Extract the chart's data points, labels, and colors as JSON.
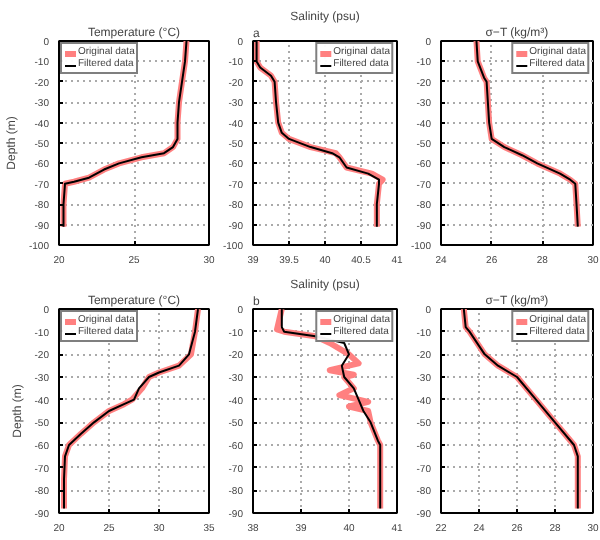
{
  "chart_data": [
    {
      "type": "line",
      "title": "Temperature (°C)",
      "ylabel": "Depth (m)",
      "xlim": [
        20,
        30
      ],
      "xticks": [
        20,
        25,
        30
      ],
      "ylim": [
        -100,
        0
      ],
      "yticks": [
        -100,
        -90,
        -80,
        -70,
        -60,
        -50,
        -40,
        -30,
        -20,
        -10,
        0
      ],
      "grid": true,
      "legend": "top left",
      "series": [
        {
          "name": "Original data",
          "color": "#ff8080",
          "x": [
            28.5,
            28.4,
            28.2,
            28.0,
            27.9,
            27.9,
            27.6,
            27.0,
            25.5,
            24.0,
            23.0,
            22.0,
            21.0,
            20.4,
            20.3,
            20.3
          ],
          "values": [
            0,
            -10,
            -20,
            -30,
            -40,
            -48,
            -52,
            -55,
            -57,
            -60,
            -63,
            -67,
            -69,
            -70,
            -80,
            -91
          ]
        },
        {
          "name": "Filtered data",
          "color": "#000000",
          "x": [
            28.5,
            28.4,
            28.2,
            28.0,
            27.9,
            27.9,
            27.6,
            27.0,
            25.5,
            24.0,
            23.0,
            22.0,
            21.0,
            20.4,
            20.3,
            20.3
          ],
          "values": [
            0,
            -10,
            -20,
            -30,
            -40,
            -48,
            -52,
            -55,
            -57,
            -60,
            -63,
            -67,
            -69,
            -70,
            -80,
            -91
          ]
        }
      ]
    },
    {
      "type": "line",
      "title": "Salinity (psu)",
      "annotations": [
        "a"
      ],
      "xlim": [
        39,
        41
      ],
      "xticks": [
        39,
        39.5,
        40,
        40.5,
        41
      ],
      "ylim": [
        -100,
        0
      ],
      "yticks": [
        -100,
        -90,
        -80,
        -70,
        -60,
        -50,
        -40,
        -30,
        -20,
        -10,
        0
      ],
      "grid": true,
      "legend": "top right",
      "series": [
        {
          "name": "Original data",
          "color": "#ff8080",
          "x": [
            39.05,
            39.05,
            39.1,
            39.25,
            39.3,
            39.32,
            39.35,
            39.4,
            39.5,
            39.8,
            40.15,
            40.2,
            40.3,
            40.65,
            40.8,
            40.75,
            40.72,
            40.72
          ],
          "values": [
            0,
            -10,
            -13,
            -17,
            -20,
            -30,
            -40,
            -45,
            -48,
            -52,
            -55,
            -57,
            -62,
            -65,
            -68,
            -70,
            -80,
            -91
          ]
        },
        {
          "name": "Filtered data",
          "color": "#000000",
          "x": [
            39.05,
            39.05,
            39.1,
            39.25,
            39.3,
            39.32,
            39.35,
            39.4,
            39.5,
            39.8,
            40.1,
            40.2,
            40.3,
            40.6,
            40.75,
            40.75,
            40.72,
            40.72
          ],
          "values": [
            0,
            -10,
            -13,
            -17,
            -20,
            -30,
            -40,
            -45,
            -48,
            -52,
            -55,
            -57,
            -62,
            -65,
            -68,
            -70,
            -80,
            -91
          ]
        }
      ]
    },
    {
      "type": "line",
      "title": "σ−T (kg/m³)",
      "xlim": [
        24,
        30
      ],
      "xticks": [
        24,
        26,
        28,
        30
      ],
      "ylim": [
        -100,
        0
      ],
      "yticks": [
        -100,
        -90,
        -80,
        -70,
        -60,
        -50,
        -40,
        -30,
        -20,
        -10,
        0
      ],
      "grid": true,
      "legend": "top right",
      "series": [
        {
          "name": "Original data",
          "color": "#ff8080",
          "x": [
            25.4,
            25.45,
            25.7,
            25.8,
            25.85,
            25.9,
            26.0,
            26.5,
            27.2,
            27.8,
            28.7,
            29.1,
            29.3,
            29.35,
            29.4
          ],
          "values": [
            0,
            -10,
            -18,
            -20,
            -30,
            -40,
            -48,
            -52,
            -56,
            -60,
            -65,
            -68,
            -70,
            -80,
            -91
          ]
        },
        {
          "name": "Filtered data",
          "color": "#000000",
          "x": [
            25.4,
            25.45,
            25.7,
            25.8,
            25.85,
            25.9,
            26.0,
            26.5,
            27.2,
            27.8,
            28.7,
            29.1,
            29.3,
            29.35,
            29.4
          ],
          "values": [
            0,
            -10,
            -18,
            -20,
            -30,
            -40,
            -48,
            -52,
            -56,
            -60,
            -65,
            -68,
            -70,
            -80,
            -91
          ]
        }
      ]
    },
    {
      "type": "line",
      "title": "Temperature (°C)",
      "ylabel": "Depth (m)",
      "xlim": [
        20,
        35
      ],
      "xticks": [
        20,
        25,
        30,
        35
      ],
      "ylim": [
        -90,
        0
      ],
      "yticks": [
        -90,
        -80,
        -70,
        -60,
        -50,
        -40,
        -30,
        -20,
        -10,
        0
      ],
      "grid": true,
      "legend": "top left",
      "series": [
        {
          "name": "Original data",
          "color": "#ff8080",
          "x": [
            33.9,
            33.6,
            33.2,
            32.0,
            30.0,
            29.0,
            28.3,
            27.3,
            26.5,
            25.0,
            23.5,
            22.2,
            21.0,
            20.6,
            20.5,
            20.5
          ],
          "values": [
            0,
            -10,
            -20,
            -25,
            -28,
            -30,
            -35,
            -40,
            -42,
            -45,
            -50,
            -55,
            -60,
            -65,
            -75,
            -88
          ]
        },
        {
          "name": "Filtered data",
          "color": "#000000",
          "x": [
            33.9,
            33.6,
            33.0,
            32.0,
            30.0,
            29.0,
            28.0,
            27.5,
            26.5,
            25.0,
            23.5,
            22.2,
            21.0,
            20.6,
            20.5,
            20.5
          ],
          "values": [
            0,
            -10,
            -20,
            -25,
            -28,
            -30,
            -35,
            -40,
            -42,
            -45,
            -50,
            -55,
            -60,
            -65,
            -75,
            -88
          ]
        }
      ]
    },
    {
      "type": "line",
      "title": "Salinity (psu)",
      "annotations": [
        "b"
      ],
      "xlim": [
        38,
        41
      ],
      "xticks": [
        38,
        39,
        40,
        41
      ],
      "ylim": [
        -90,
        0
      ],
      "yticks": [
        -90,
        -80,
        -70,
        -60,
        -50,
        -40,
        -30,
        -20,
        -10,
        0
      ],
      "grid": true,
      "legend": "top right",
      "series": [
        {
          "name": "Original data",
          "color": "#ff8080",
          "x": [
            38.6,
            38.5,
            38.65,
            39.3,
            39.6,
            40.0,
            40.2,
            39.6,
            40.1,
            39.9,
            40.1,
            39.8,
            40.4,
            40.0,
            40.4,
            40.45,
            40.6,
            40.65,
            40.65
          ],
          "values": [
            0,
            -9,
            -10,
            -12,
            -15,
            -20,
            -24,
            -27,
            -29,
            -30,
            -35,
            -38,
            -41,
            -43,
            -45,
            -50,
            -58,
            -60,
            -88
          ]
        },
        {
          "name": "Filtered data",
          "color": "#000000",
          "x": [
            38.6,
            38.6,
            38.65,
            39.3,
            39.9,
            40.0,
            39.85,
            39.9,
            40.1,
            40.2,
            40.3,
            40.45,
            40.6,
            40.65,
            40.65
          ],
          "values": [
            0,
            -8,
            -10,
            -12,
            -15,
            -20,
            -25,
            -30,
            -35,
            -40,
            -45,
            -50,
            -58,
            -60,
            -88
          ]
        }
      ]
    },
    {
      "type": "line",
      "title": "σ−T (kg/m³)",
      "xlim": [
        22,
        30
      ],
      "xticks": [
        22,
        24,
        26,
        28,
        30
      ],
      "ylim": [
        -90,
        0
      ],
      "yticks": [
        -90,
        -80,
        -70,
        -60,
        -50,
        -40,
        -30,
        -20,
        -10,
        0
      ],
      "grid": true,
      "legend": "top right",
      "series": [
        {
          "name": "Original data",
          "color": "#ff8080",
          "x": [
            23.2,
            23.3,
            23.5,
            24.3,
            25.0,
            26.0,
            27.0,
            28.0,
            29.0,
            29.2,
            29.2
          ],
          "values": [
            0,
            -8,
            -10,
            -20,
            -25,
            -30,
            -40,
            -50,
            -60,
            -65,
            -88
          ]
        },
        {
          "name": "Filtered data",
          "color": "#000000",
          "x": [
            23.2,
            23.3,
            23.5,
            24.3,
            25.0,
            26.0,
            27.0,
            28.0,
            29.0,
            29.2,
            29.2
          ],
          "values": [
            0,
            -8,
            -10,
            -20,
            -25,
            -30,
            -40,
            -50,
            -60,
            -65,
            -88
          ]
        }
      ]
    }
  ]
}
